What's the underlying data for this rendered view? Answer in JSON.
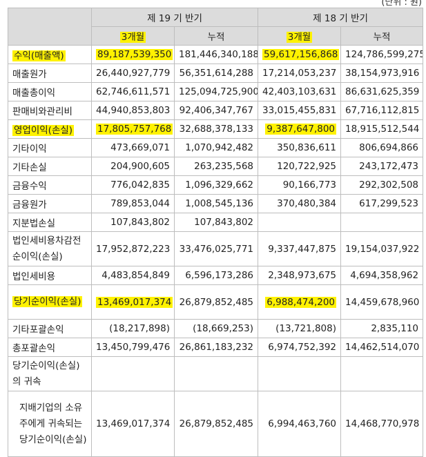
{
  "unit_label": "(단위 : 원)",
  "header": {
    "period_19": "제 19 기 반기",
    "period_18": "제 18 기 반기",
    "col_3m": "3개월",
    "col_cum": "누적"
  },
  "rows": [
    {
      "label": "수익(매출액)",
      "v": [
        "89,187,539,350",
        "181,446,340,188",
        "59,617,156,868",
        "124,786,599,275"
      ],
      "highlight": true
    },
    {
      "label": "매출원가",
      "v": [
        "26,440,927,779",
        "56,351,614,288",
        "17,214,053,237",
        "38,154,973,916"
      ]
    },
    {
      "label": "매출총이익",
      "v": [
        "62,746,611,571",
        "125,094,725,900",
        "42,403,103,631",
        "86,631,625,359"
      ]
    },
    {
      "label": "판매비와관리비",
      "v": [
        "44,940,853,803",
        "92,406,347,767",
        "33,015,455,831",
        "67,716,112,815"
      ]
    },
    {
      "label": "영업이익(손실)",
      "v": [
        "17,805,757,768",
        "32,688,378,133",
        "9,387,647,800",
        "18,915,512,544"
      ],
      "highlight": true
    },
    {
      "label": "기타이익",
      "v": [
        "473,669,071",
        "1,070,942,482",
        "350,836,611",
        "806,694,866"
      ]
    },
    {
      "label": "기타손실",
      "v": [
        "204,900,605",
        "263,235,568",
        "120,722,925",
        "243,172,473"
      ]
    },
    {
      "label": "금융수익",
      "v": [
        "776,042,835",
        "1,096,329,662",
        "90,166,773",
        "292,302,508"
      ]
    },
    {
      "label": "금융원가",
      "v": [
        "789,853,044",
        "1,008,545,136",
        "370,480,384",
        "617,299,523"
      ]
    },
    {
      "label": "지분법손실",
      "v": [
        "107,843,802",
        "107,843,802",
        "",
        ""
      ]
    },
    {
      "label": "법인세비용차감전순이익(손실)",
      "v": [
        "17,952,872,223",
        "33,476,025,771",
        "9,337,447,875",
        "19,154,037,922"
      ]
    },
    {
      "label": "법인세비용",
      "v": [
        "4,483,854,849",
        "6,596,173,286",
        "2,348,973,675",
        "4,694,358,962"
      ]
    },
    {
      "label": "당기순이익(손실)",
      "v": [
        "13,469,017,374",
        "26,879,852,485",
        "6,988,474,200",
        "14,459,678,960"
      ],
      "highlight": true
    },
    {
      "label": "기타포괄손익",
      "v": [
        "(18,217,898)",
        "(18,669,253)",
        "(13,721,808)",
        "2,835,110"
      ]
    },
    {
      "label": "총포괄손익",
      "v": [
        "13,450,799,476",
        "26,861,183,232",
        "6,974,752,392",
        "14,462,514,070"
      ]
    },
    {
      "label": "당기순이익(손실)의 귀속",
      "v": [
        "",
        "",
        "",
        ""
      ]
    },
    {
      "label": "지배기업의 소유주에게 귀속되는 당기순이익(손실)",
      "v": [
        "13,469,017,374",
        "26,879,852,485",
        "6,994,463,760",
        "14,468,770,978"
      ]
    }
  ],
  "colors": {
    "highlight": "#fff200",
    "header_bg": "#dcdcdc",
    "border": "#bdbdbd"
  }
}
